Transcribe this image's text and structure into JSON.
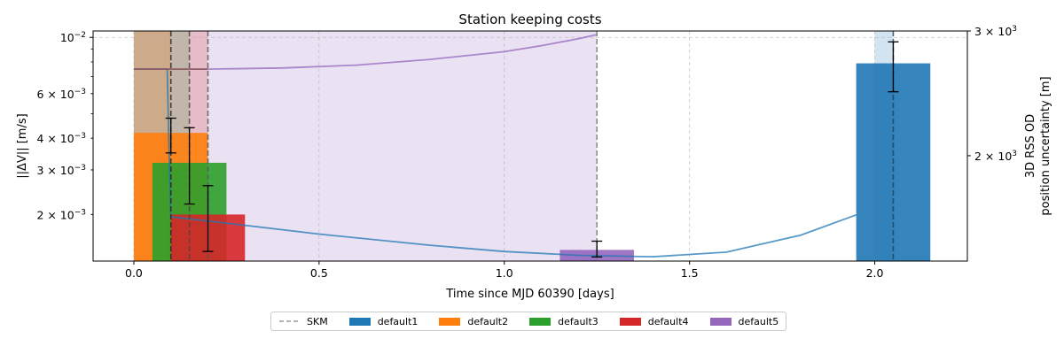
{
  "chart_data": {
    "type": "bar",
    "title": "Station keeping costs",
    "xlabel": "Time since MJD 60390 [days]",
    "ylabel": "||ΔV|| [m/s]",
    "ylabel_right": [
      "3D RSS OD",
      "position uncertainty [m]"
    ],
    "xlim": [
      -0.11,
      2.25
    ],
    "ylim": [
      0.00131,
      0.0106
    ],
    "yscale": "log",
    "ylim_right": [
      1420,
      3000
    ],
    "yscale_right": "log",
    "x_ticks": [
      0.0,
      0.5,
      1.0,
      1.5,
      2.0
    ],
    "x_tick_labels": [
      "0.0",
      "0.5",
      "1.0",
      "1.5",
      "2.0"
    ],
    "y_ticks": [
      {
        "value": 0.01,
        "base": "10",
        "exp": "−2",
        "mant": ""
      },
      {
        "value": 0.006,
        "base": "10",
        "exp": "−3",
        "mant": "6 × "
      },
      {
        "value": 0.004,
        "base": "10",
        "exp": "−3",
        "mant": "4 × "
      },
      {
        "value": 0.003,
        "base": "10",
        "exp": "−3",
        "mant": "3 × "
      },
      {
        "value": 0.002,
        "base": "10",
        "exp": "−3",
        "mant": "2 × "
      }
    ],
    "y_ticks_right": [
      {
        "value": 3000,
        "base": "10",
        "exp": "3",
        "mant": "3 × "
      },
      {
        "value": 2000,
        "base": "10",
        "exp": "3",
        "mant": "2 × "
      }
    ],
    "grid": true,
    "legend": {
      "placement": "bottom-center",
      "entries": [
        "SKM",
        "default1",
        "default2",
        "default3",
        "default4",
        "default5"
      ]
    },
    "series": [
      {
        "name": "default1",
        "color": "#1f77b4",
        "x": 2.05,
        "width": 0.2,
        "value": 0.0079,
        "err_low": 0.0061,
        "err_high": 0.0096
      },
      {
        "name": "default2",
        "color": "#ff7f0e",
        "x": 0.1,
        "width": 0.2,
        "value": 0.0042,
        "err_low": 0.0035,
        "err_high": 0.0048
      },
      {
        "name": "default3",
        "color": "#2ca02c",
        "x": 0.15,
        "width": 0.2,
        "value": 0.0032,
        "err_low": 0.0022,
        "err_high": 0.0044
      },
      {
        "name": "default4",
        "color": "#d62728",
        "x": 0.2,
        "width": 0.2,
        "value": 0.002,
        "err_low": 0.00143,
        "err_high": 0.0026
      },
      {
        "name": "default5",
        "color": "#9467bd",
        "x": 1.25,
        "width": 0.2,
        "value": 0.00145,
        "err_low": 0.00136,
        "err_high": 0.00157
      }
    ],
    "skm_times": [
      0.1,
      0.15,
      0.2,
      1.25,
      2.05
    ],
    "uncertainty_spans": [
      {
        "name": "default1",
        "color": "#1f77b4",
        "x0": 2.0,
        "x1": 2.05
      },
      {
        "name": "default2",
        "color": "#ff7f0e",
        "x0": 0.0,
        "x1": 0.1
      },
      {
        "name": "default3",
        "color": "#2ca02c",
        "x0": 0.0,
        "x1": 0.15
      },
      {
        "name": "default4",
        "color": "#d62728",
        "x0": 0.0,
        "x1": 0.2
      },
      {
        "name": "default5",
        "color": "#9467bd",
        "x0": 0.0,
        "x1": 1.25
      }
    ],
    "uncertainty_curves": [
      {
        "name": "default1",
        "color": "#1f77b4",
        "x": [
          0.0,
          0.09,
          0.095,
          0.1,
          0.3,
          0.5,
          0.8,
          1.0,
          1.2,
          1.4,
          1.6,
          1.8,
          1.95
        ],
        "y": [
          2650,
          2650,
          2050,
          1640,
          1595,
          1550,
          1495,
          1465,
          1447,
          1440,
          1462,
          1545,
          1650
        ]
      },
      {
        "name": "default5",
        "color": "#9467bd",
        "x": [
          0.0,
          0.2,
          0.4,
          0.6,
          0.8,
          1.0,
          1.1,
          1.2,
          1.25
        ],
        "y": [
          2650,
          2650,
          2660,
          2685,
          2735,
          2805,
          2860,
          2925,
          2965
        ]
      },
      {
        "name": "default5-flat",
        "color": "#8c564b",
        "x": [
          0.0,
          0.2
        ],
        "y": [
          2650,
          2650
        ]
      }
    ]
  },
  "legend_labels": {
    "skm": "SKM",
    "default1": "default1",
    "default2": "default2",
    "default3": "default3",
    "default4": "default4",
    "default5": "default5"
  }
}
